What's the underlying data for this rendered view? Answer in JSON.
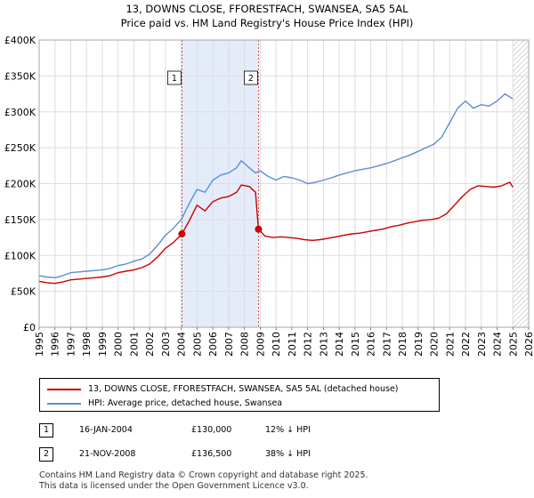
{
  "chart_data": {
    "type": "line",
    "title": "13, DOWNS CLOSE, FFORESTFACH, SWANSEA, SA5 5AL",
    "subtitle": "Price paid vs. HM Land Registry's House Price Index (HPI)",
    "xlabel": "",
    "ylabel": "",
    "xlim": [
      1995,
      2026
    ],
    "ylim": [
      0,
      400000
    ],
    "x_ticks": [
      "1995",
      "1996",
      "1997",
      "1998",
      "1999",
      "2000",
      "2001",
      "2002",
      "2003",
      "2004",
      "2005",
      "2006",
      "2007",
      "2008",
      "2009",
      "2010",
      "2011",
      "2012",
      "2013",
      "2014",
      "2015",
      "2016",
      "2017",
      "2018",
      "2019",
      "2020",
      "2021",
      "2022",
      "2023",
      "2024",
      "2025",
      "2026"
    ],
    "y_ticks": [
      {
        "value": 0,
        "label": "£0"
      },
      {
        "value": 50000,
        "label": "£50K"
      },
      {
        "value": 100000,
        "label": "£100K"
      },
      {
        "value": 150000,
        "label": "£150K"
      },
      {
        "value": 200000,
        "label": "£200K"
      },
      {
        "value": 250000,
        "label": "£250K"
      },
      {
        "value": 300000,
        "label": "£300K"
      },
      {
        "value": 350000,
        "label": "£350K"
      },
      {
        "value": 400000,
        "label": "£400K"
      }
    ],
    "grid": true,
    "shaded_region": [
      2004.04,
      2008.89
    ],
    "future_hatch_from": 2025.0,
    "series": [
      {
        "name": "13, DOWNS CLOSE, FFORESTFACH, SWANSEA, SA5 5AL (detached house)",
        "color": "#cc0000",
        "x": [
          1995.0,
          1995.5,
          1996.0,
          1996.5,
          1997.0,
          1997.5,
          1998.0,
          1998.5,
          1999.0,
          1999.5,
          2000.0,
          2000.5,
          2001.0,
          2001.5,
          2002.0,
          2002.5,
          2003.0,
          2003.5,
          2004.04,
          2004.5,
          2005.0,
          2005.5,
          2006.0,
          2006.5,
          2007.0,
          2007.5,
          2007.8,
          2008.3,
          2008.7,
          2008.89,
          2009.3,
          2009.8,
          2010.3,
          2010.8,
          2011.3,
          2011.8,
          2012.3,
          2012.8,
          2013.3,
          2013.8,
          2014.3,
          2014.8,
          2015.3,
          2015.8,
          2016.3,
          2016.8,
          2017.3,
          2017.8,
          2018.3,
          2018.8,
          2019.3,
          2019.8,
          2020.3,
          2020.8,
          2021.3,
          2021.8,
          2022.3,
          2022.8,
          2023.3,
          2023.8,
          2024.3,
          2024.8,
          2025.0
        ],
        "values": [
          64000,
          62000,
          61000,
          63000,
          66000,
          67000,
          68000,
          69000,
          70000,
          72000,
          76000,
          78000,
          80000,
          83000,
          88000,
          98000,
          110000,
          118000,
          130000,
          148000,
          170000,
          162000,
          175000,
          180000,
          182000,
          188000,
          198000,
          196000,
          188000,
          136500,
          127000,
          125000,
          126000,
          125000,
          124000,
          122000,
          121000,
          122000,
          124000,
          126000,
          128000,
          130000,
          131000,
          133000,
          135000,
          137000,
          140000,
          142000,
          145000,
          147000,
          149000,
          150000,
          152000,
          158000,
          170000,
          182000,
          192000,
          197000,
          196000,
          195000,
          197000,
          202000,
          195000
        ]
      },
      {
        "name": "HPI: Average price, detached house, Swansea",
        "color": "#5b8ed6",
        "x": [
          1995.0,
          1995.5,
          1996.0,
          1996.5,
          1997.0,
          1997.5,
          1998.0,
          1998.5,
          1999.0,
          1999.5,
          2000.0,
          2000.5,
          2001.0,
          2001.5,
          2002.0,
          2002.5,
          2003.0,
          2003.5,
          2004.0,
          2004.5,
          2005.0,
          2005.5,
          2006.0,
          2006.5,
          2007.0,
          2007.5,
          2007.8,
          2008.3,
          2008.7,
          2009.0,
          2009.5,
          2010.0,
          2010.5,
          2011.0,
          2011.5,
          2012.0,
          2012.5,
          2013.0,
          2013.5,
          2014.0,
          2014.5,
          2015.0,
          2015.5,
          2016.0,
          2016.5,
          2017.0,
          2017.5,
          2018.0,
          2018.5,
          2019.0,
          2019.5,
          2020.0,
          2020.5,
          2021.0,
          2021.5,
          2022.0,
          2022.5,
          2023.0,
          2023.5,
          2024.0,
          2024.5,
          2025.0
        ],
        "values": [
          72000,
          70000,
          69000,
          72000,
          76000,
          77000,
          78000,
          79000,
          80000,
          82000,
          86000,
          88000,
          92000,
          95000,
          102000,
          114000,
          128000,
          138000,
          150000,
          172000,
          192000,
          188000,
          205000,
          212000,
          215000,
          222000,
          232000,
          222000,
          215000,
          218000,
          210000,
          205000,
          210000,
          208000,
          205000,
          200000,
          202000,
          205000,
          208000,
          212000,
          215000,
          218000,
          220000,
          222000,
          225000,
          228000,
          232000,
          236000,
          240000,
          245000,
          250000,
          255000,
          265000,
          285000,
          305000,
          315000,
          305000,
          310000,
          308000,
          315000,
          325000,
          318000
        ]
      }
    ],
    "transactions": [
      {
        "label": "1",
        "x": 2004.04,
        "value": 130000
      },
      {
        "label": "2",
        "x": 2008.89,
        "value": 136500
      }
    ]
  },
  "legend": {
    "property_label": "13, DOWNS CLOSE, FFORESTFACH, SWANSEA, SA5 5AL (detached house)",
    "hpi_label": "HPI: Average price, detached house, Swansea",
    "property_color": "#cc0000",
    "hpi_color": "#5b8ed6"
  },
  "annotations": [
    {
      "number": "1",
      "date": "16-JAN-2004",
      "price": "£130,000",
      "hpi": "12% ↓ HPI"
    },
    {
      "number": "2",
      "date": "21-NOV-2008",
      "price": "£136,500",
      "hpi": "38% ↓ HPI"
    }
  ],
  "footer": {
    "line1": "Contains HM Land Registry data © Crown copyright and database right 2025.",
    "line2": "This data is licensed under the Open Government Licence v3.0."
  }
}
